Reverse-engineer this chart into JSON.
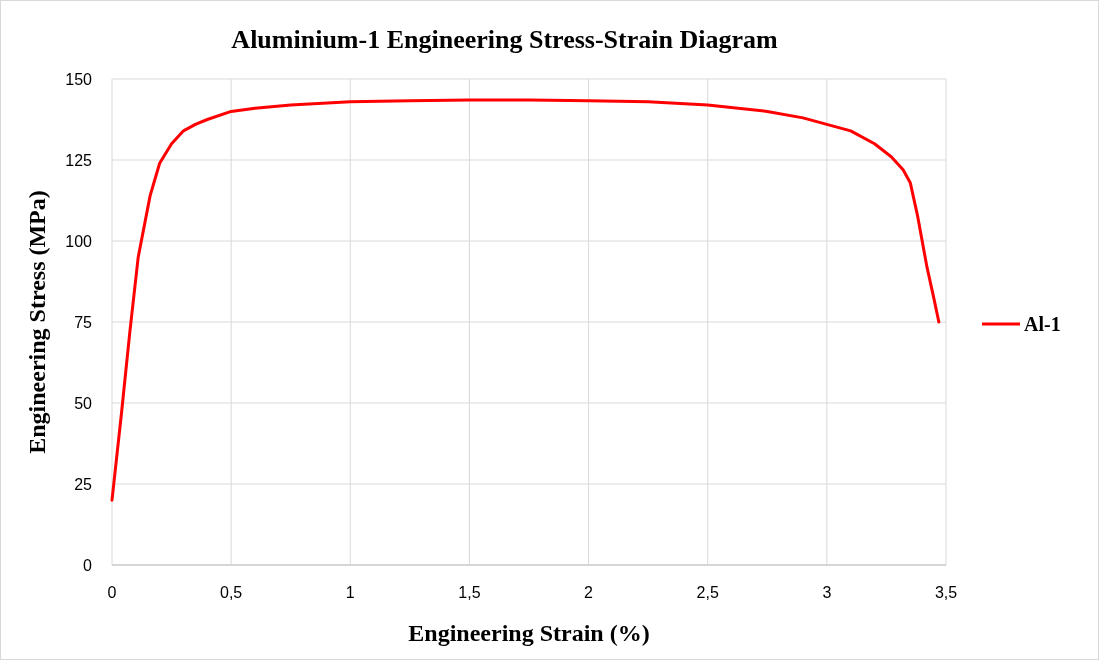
{
  "chart_data": {
    "type": "line",
    "title": "Aluminium-1  Engineering Stress-Strain Diagram",
    "xlabel": "Engineering  Strain  (%)",
    "ylabel": "Engineering  Stress  (MPa)",
    "xlim": [
      0,
      3.5
    ],
    "xticks": [
      0,
      {
        "value": 0.5,
        "label": "0,5"
      },
      1,
      {
        "value": 1.5,
        "label": "1,5"
      },
      2,
      {
        "value": 2.5,
        "label": "2,5"
      },
      3,
      {
        "value": 3.5,
        "label": "3,5"
      }
    ],
    "ylim": [
      0,
      150
    ],
    "yticks": [
      0,
      25,
      50,
      75,
      100,
      125,
      150
    ],
    "grid": true,
    "legend": "right",
    "marker": "none",
    "line_style": "solid",
    "series": [
      {
        "name": "Al-1",
        "color": "#ff0000",
        "x": [
          0,
          0.04,
          0.075,
          0.11,
          0.16,
          0.2,
          0.25,
          0.3,
          0.35,
          0.4,
          0.5,
          0.6,
          0.75,
          1,
          1.25,
          1.5,
          1.75,
          2,
          2.25,
          2.5,
          2.75,
          2.9,
          3,
          3.1,
          3.2,
          3.27,
          3.32,
          3.35,
          3.38,
          3.42,
          3.45,
          3.47
        ],
        "values": [
          20,
          47,
          72,
          95,
          114,
          124,
          130,
          134,
          136,
          137.5,
          140,
          141,
          142,
          143,
          143.3,
          143.5,
          143.5,
          143.3,
          143,
          142,
          140,
          138,
          136,
          134,
          130,
          126,
          122,
          118,
          108,
          92,
          82,
          75
        ]
      }
    ]
  }
}
